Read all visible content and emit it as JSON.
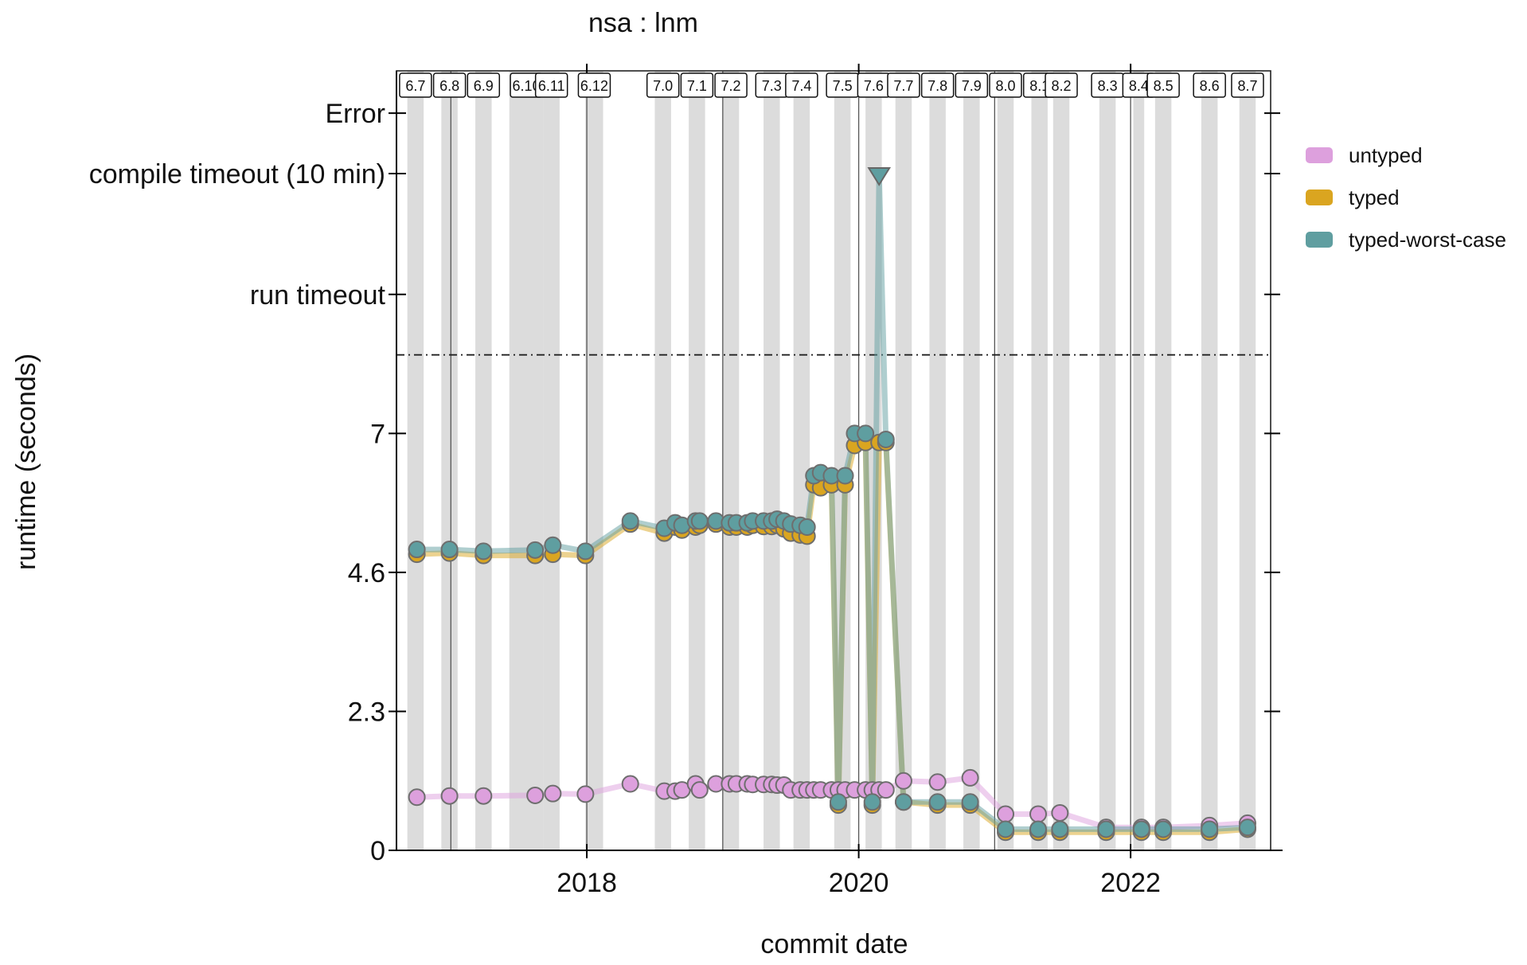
{
  "chart_data": {
    "type": "line",
    "title": "nsa : lnm",
    "xlabel": "commit date",
    "ylabel": "runtime (seconds)",
    "x_ticks": [
      "2018",
      "2020",
      "2022"
    ],
    "x_tick_years": [
      2018,
      2020,
      2022
    ],
    "xlim": [
      2016.6,
      2023.03
    ],
    "y_ticks": [
      {
        "label": "0",
        "value": 0
      },
      {
        "label": "2.3",
        "value": 2.3
      },
      {
        "label": "4.6",
        "value": 4.6
      },
      {
        "label": "7",
        "value": 6.9
      },
      {
        "label": "run timeout",
        "value": 9.2
      },
      {
        "label": "compile timeout (10 min)",
        "value": 11.2
      },
      {
        "label": "Error",
        "value": 12.2
      }
    ],
    "ylim": [
      0,
      12.9
    ],
    "threshold_line": 8.2,
    "release_bands": [
      {
        "label": "6.7",
        "start": 2016.68,
        "end": 2016.8
      },
      {
        "label": "6.8",
        "start": 2016.93,
        "end": 2017.05
      },
      {
        "label": "6.9",
        "start": 2017.18,
        "end": 2017.3
      },
      {
        "label": "6.10",
        "start": 2017.43,
        "end": 2017.68
      },
      {
        "label": "6.11",
        "start": 2017.68,
        "end": 2017.8
      },
      {
        "label": "6.12",
        "start": 2017.99,
        "end": 2018.12
      },
      {
        "label": "7.0",
        "start": 2018.5,
        "end": 2018.62
      },
      {
        "label": "7.1",
        "start": 2018.75,
        "end": 2018.87
      },
      {
        "label": "7.2",
        "start": 2019.0,
        "end": 2019.12
      },
      {
        "label": "7.3",
        "start": 2019.3,
        "end": 2019.42
      },
      {
        "label": "7.4",
        "start": 2019.52,
        "end": 2019.64
      },
      {
        "label": "7.5",
        "start": 2019.82,
        "end": 2019.94
      },
      {
        "label": "7.6",
        "start": 2020.05,
        "end": 2020.17
      },
      {
        "label": "7.7",
        "start": 2020.27,
        "end": 2020.39
      },
      {
        "label": "7.8",
        "start": 2020.52,
        "end": 2020.64
      },
      {
        "label": "7.9",
        "start": 2020.77,
        "end": 2020.89
      },
      {
        "label": "8.0",
        "start": 2021.02,
        "end": 2021.14
      },
      {
        "label": "8.1",
        "start": 2021.27,
        "end": 2021.39
      },
      {
        "label": "8.2",
        "start": 2021.43,
        "end": 2021.55
      },
      {
        "label": "8.3",
        "start": 2021.77,
        "end": 2021.89
      },
      {
        "label": "8.4",
        "start": 2022.02,
        "end": 2022.1
      },
      {
        "label": "8.5",
        "start": 2022.18,
        "end": 2022.3
      },
      {
        "label": "8.6",
        "start": 2022.52,
        "end": 2022.64
      },
      {
        "label": "8.7",
        "start": 2022.8,
        "end": 2022.92
      }
    ],
    "series": [
      {
        "name": "untyped",
        "color": "#dda0dd",
        "points": [
          [
            2016.75,
            0.88
          ],
          [
            2016.99,
            0.9
          ],
          [
            2017.24,
            0.9
          ],
          [
            2017.62,
            0.91
          ],
          [
            2017.75,
            0.94
          ],
          [
            2017.99,
            0.93
          ],
          [
            2018.32,
            1.1
          ],
          [
            2018.57,
            0.98
          ],
          [
            2018.65,
            0.98
          ],
          [
            2018.7,
            1.0
          ],
          [
            2018.8,
            1.1
          ],
          [
            2018.83,
            1.0
          ],
          [
            2018.95,
            1.1
          ],
          [
            2019.05,
            1.1
          ],
          [
            2019.1,
            1.1
          ],
          [
            2019.18,
            1.1
          ],
          [
            2019.22,
            1.09
          ],
          [
            2019.3,
            1.09
          ],
          [
            2019.36,
            1.09
          ],
          [
            2019.4,
            1.08
          ],
          [
            2019.45,
            1.08
          ],
          [
            2019.5,
            1.0
          ],
          [
            2019.57,
            1.0
          ],
          [
            2019.62,
            1.0
          ],
          [
            2019.67,
            1.0
          ],
          [
            2019.72,
            1.0
          ],
          [
            2019.8,
            1.0
          ],
          [
            2019.85,
            1.0
          ],
          [
            2019.9,
            1.0
          ],
          [
            2019.97,
            1.0
          ],
          [
            2020.05,
            1.0
          ],
          [
            2020.1,
            1.0
          ],
          [
            2020.15,
            1.0
          ],
          [
            2020.2,
            1.0
          ],
          [
            2020.33,
            1.15
          ],
          [
            2020.58,
            1.13
          ],
          [
            2020.82,
            1.2
          ],
          [
            2021.08,
            0.6
          ],
          [
            2021.32,
            0.6
          ],
          [
            2021.48,
            0.62
          ],
          [
            2021.82,
            0.38
          ],
          [
            2022.08,
            0.38
          ],
          [
            2022.24,
            0.38
          ],
          [
            2022.58,
            0.41
          ],
          [
            2022.86,
            0.45
          ]
        ]
      },
      {
        "name": "typed",
        "color": "#daa520",
        "points": [
          [
            2016.75,
            4.9
          ],
          [
            2016.99,
            4.92
          ],
          [
            2017.24,
            4.88
          ],
          [
            2017.62,
            4.88
          ],
          [
            2017.75,
            4.9
          ],
          [
            2017.99,
            4.88
          ],
          [
            2018.32,
            5.4
          ],
          [
            2018.57,
            5.25
          ],
          [
            2018.65,
            5.35
          ],
          [
            2018.7,
            5.3
          ],
          [
            2018.8,
            5.35
          ],
          [
            2018.83,
            5.38
          ],
          [
            2018.95,
            5.4
          ],
          [
            2019.05,
            5.35
          ],
          [
            2019.1,
            5.35
          ],
          [
            2019.18,
            5.35
          ],
          [
            2019.22,
            5.38
          ],
          [
            2019.3,
            5.36
          ],
          [
            2019.36,
            5.36
          ],
          [
            2019.4,
            5.38
          ],
          [
            2019.45,
            5.32
          ],
          [
            2019.5,
            5.25
          ],
          [
            2019.57,
            5.22
          ],
          [
            2019.62,
            5.2
          ],
          [
            2019.67,
            6.05
          ],
          [
            2019.72,
            6.0
          ],
          [
            2019.8,
            6.05
          ],
          [
            2019.85,
            0.75
          ],
          [
            2019.9,
            6.05
          ],
          [
            2019.97,
            6.7
          ],
          [
            2020.05,
            6.75
          ],
          [
            2020.1,
            0.75
          ],
          [
            2020.15,
            6.75
          ],
          [
            2020.2,
            6.75
          ],
          [
            2020.33,
            0.8
          ],
          [
            2020.58,
            0.75
          ],
          [
            2020.82,
            0.75
          ],
          [
            2021.08,
            0.3
          ],
          [
            2021.32,
            0.3
          ],
          [
            2021.48,
            0.3
          ],
          [
            2021.82,
            0.3
          ],
          [
            2022.08,
            0.3
          ],
          [
            2022.24,
            0.3
          ],
          [
            2022.58,
            0.3
          ],
          [
            2022.86,
            0.35
          ]
        ]
      },
      {
        "name": "typed-worst-case",
        "color": "#5f9ea0",
        "points": [
          [
            2016.75,
            4.98
          ],
          [
            2016.99,
            4.98
          ],
          [
            2017.24,
            4.95
          ],
          [
            2017.62,
            4.97
          ],
          [
            2017.75,
            5.05
          ],
          [
            2017.99,
            4.95
          ],
          [
            2018.32,
            5.45
          ],
          [
            2018.57,
            5.33
          ],
          [
            2018.65,
            5.42
          ],
          [
            2018.7,
            5.38
          ],
          [
            2018.8,
            5.45
          ],
          [
            2018.83,
            5.45
          ],
          [
            2018.95,
            5.45
          ],
          [
            2019.05,
            5.42
          ],
          [
            2019.1,
            5.42
          ],
          [
            2019.18,
            5.42
          ],
          [
            2019.22,
            5.45
          ],
          [
            2019.3,
            5.45
          ],
          [
            2019.36,
            5.45
          ],
          [
            2019.4,
            5.48
          ],
          [
            2019.45,
            5.45
          ],
          [
            2019.5,
            5.4
          ],
          [
            2019.57,
            5.38
          ],
          [
            2019.62,
            5.35
          ],
          [
            2019.67,
            6.2
          ],
          [
            2019.72,
            6.25
          ],
          [
            2019.8,
            6.2
          ],
          [
            2019.85,
            0.8
          ],
          [
            2019.9,
            6.2
          ],
          [
            2019.97,
            6.9
          ],
          [
            2020.05,
            6.9
          ],
          [
            2020.1,
            0.8
          ],
          [
            2020.15,
            11.2
          ],
          [
            2020.2,
            6.8
          ],
          [
            2020.33,
            0.8
          ],
          [
            2020.58,
            0.8
          ],
          [
            2020.82,
            0.8
          ],
          [
            2021.08,
            0.35
          ],
          [
            2021.32,
            0.35
          ],
          [
            2021.48,
            0.35
          ],
          [
            2021.82,
            0.35
          ],
          [
            2022.08,
            0.35
          ],
          [
            2022.24,
            0.35
          ],
          [
            2022.58,
            0.35
          ],
          [
            2022.86,
            0.38
          ]
        ]
      }
    ],
    "legend": {
      "position": "right",
      "entries": [
        {
          "label": "untyped",
          "color": "#dda0dd"
        },
        {
          "label": "typed",
          "color": "#daa520"
        },
        {
          "label": "typed-worst-case",
          "color": "#5f9ea0"
        }
      ]
    }
  }
}
